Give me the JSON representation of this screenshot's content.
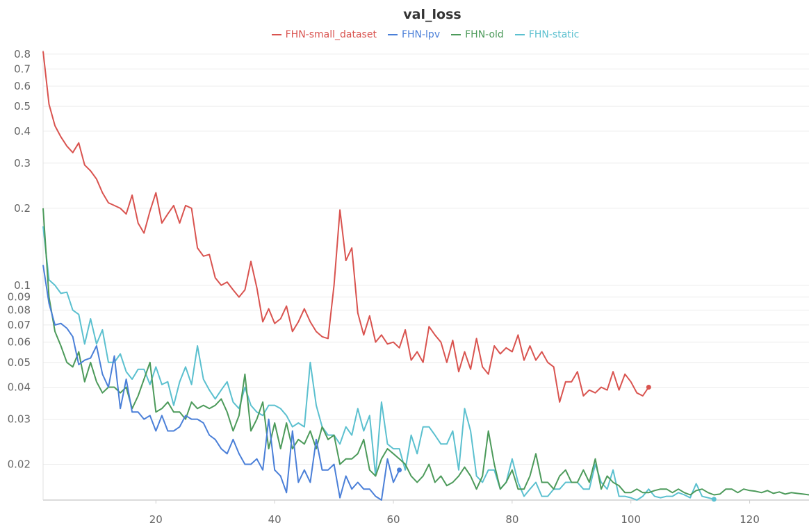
{
  "chart_data": {
    "type": "line",
    "title": "val_loss",
    "xlabel": "",
    "ylabel": "",
    "yscale": "log",
    "xlim": [
      1,
      130
    ],
    "ylim": [
      0.0145,
      0.83
    ],
    "grid": true,
    "legend_position": "top-center",
    "x_ticks": [
      20,
      40,
      60,
      80,
      100,
      120
    ],
    "y_ticks": [
      0.02,
      0.03,
      0.04,
      0.05,
      0.06,
      0.07,
      0.08,
      0.09,
      0.1,
      0.2,
      0.3,
      0.4,
      0.5,
      0.6,
      0.7,
      0.8
    ],
    "y_tick_labels": [
      "0.02",
      "0.03",
      "0.04",
      "0.05",
      "0.06",
      "0.07",
      "0.08",
      "0.09",
      "0.1",
      "0.2",
      "0.3",
      "0.4",
      "0.5",
      "0.6",
      "0.7",
      "0.8"
    ],
    "series": [
      {
        "name": "FHN-small_dataset",
        "color": "#d9534f",
        "x": [
          1,
          2,
          3,
          4,
          5,
          6,
          7,
          8,
          9,
          10,
          11,
          12,
          13,
          14,
          15,
          16,
          17,
          18,
          19,
          20,
          21,
          22,
          23,
          24,
          25,
          26,
          27,
          28,
          29,
          30,
          31,
          32,
          33,
          34,
          35,
          36,
          37,
          38,
          39,
          40,
          41,
          42,
          43,
          44,
          45,
          46,
          47,
          48,
          49,
          50,
          51,
          52,
          53,
          54,
          55,
          56,
          57,
          58,
          59,
          60,
          61,
          62,
          63,
          64,
          65,
          66,
          67,
          68,
          69,
          70,
          71,
          72,
          73,
          74,
          75,
          76,
          77,
          78,
          79,
          80,
          81,
          82,
          83,
          84,
          85,
          86,
          87,
          88,
          89,
          90,
          91,
          92,
          93,
          94,
          95,
          96,
          97,
          98,
          99,
          100,
          101,
          102,
          103
        ],
        "y": [
          0.82,
          0.51,
          0.42,
          0.38,
          0.35,
          0.33,
          0.36,
          0.295,
          0.28,
          0.26,
          0.23,
          0.21,
          0.205,
          0.2,
          0.19,
          0.225,
          0.175,
          0.16,
          0.195,
          0.23,
          0.175,
          0.19,
          0.205,
          0.175,
          0.205,
          0.2,
          0.14,
          0.13,
          0.132,
          0.107,
          0.1,
          0.103,
          0.096,
          0.09,
          0.096,
          0.124,
          0.098,
          0.072,
          0.081,
          0.071,
          0.074,
          0.083,
          0.066,
          0.072,
          0.081,
          0.072,
          0.066,
          0.063,
          0.062,
          0.1,
          0.197,
          0.125,
          0.14,
          0.078,
          0.064,
          0.076,
          0.06,
          0.064,
          0.059,
          0.06,
          0.057,
          0.067,
          0.051,
          0.055,
          0.05,
          0.069,
          0.064,
          0.06,
          0.05,
          0.061,
          0.046,
          0.055,
          0.047,
          0.062,
          0.048,
          0.045,
          0.058,
          0.054,
          0.057,
          0.055,
          0.064,
          0.051,
          0.058,
          0.051,
          0.055,
          0.05,
          0.048,
          0.035,
          0.042,
          0.042,
          0.046,
          0.037,
          0.039,
          0.038,
          0.04,
          0.039,
          0.046,
          0.039,
          0.045,
          0.042,
          0.038,
          0.037,
          0.04
        ]
      },
      {
        "name": "FHN-lpv",
        "color": "#4a7fd8",
        "x": [
          1,
          2,
          3,
          4,
          5,
          6,
          7,
          8,
          9,
          10,
          11,
          12,
          13,
          14,
          15,
          16,
          17,
          18,
          19,
          20,
          21,
          22,
          23,
          24,
          25,
          26,
          27,
          28,
          29,
          30,
          31,
          32,
          33,
          34,
          35,
          36,
          37,
          38,
          39,
          40,
          41,
          42,
          43,
          44,
          45,
          46,
          47,
          48,
          49,
          50,
          51,
          52,
          53,
          54,
          55,
          56,
          57,
          58,
          59,
          60,
          61
        ],
        "y": [
          0.12,
          0.085,
          0.07,
          0.071,
          0.068,
          0.063,
          0.049,
          0.051,
          0.052,
          0.058,
          0.045,
          0.04,
          0.053,
          0.033,
          0.043,
          0.032,
          0.032,
          0.03,
          0.031,
          0.027,
          0.031,
          0.027,
          0.027,
          0.028,
          0.031,
          0.03,
          0.03,
          0.029,
          0.026,
          0.025,
          0.023,
          0.022,
          0.025,
          0.022,
          0.02,
          0.02,
          0.021,
          0.019,
          0.03,
          0.019,
          0.018,
          0.0155,
          0.027,
          0.017,
          0.019,
          0.017,
          0.025,
          0.019,
          0.019,
          0.02,
          0.0148,
          0.018,
          0.016,
          0.017,
          0.016,
          0.016,
          0.015,
          0.0145,
          0.021,
          0.017,
          0.019
        ]
      },
      {
        "name": "FHN-old",
        "color": "#4c9a5a",
        "x": [
          1,
          2,
          3,
          4,
          5,
          6,
          7,
          8,
          9,
          10,
          11,
          12,
          13,
          14,
          15,
          16,
          17,
          18,
          19,
          20,
          21,
          22,
          23,
          24,
          25,
          26,
          27,
          28,
          29,
          30,
          31,
          32,
          33,
          34,
          35,
          36,
          37,
          38,
          39,
          40,
          41,
          42,
          43,
          44,
          45,
          46,
          47,
          48,
          49,
          50,
          51,
          52,
          53,
          54,
          55,
          56,
          57,
          58,
          59,
          60,
          61,
          62,
          63,
          64,
          65,
          66,
          67,
          68,
          69,
          70,
          71,
          72,
          73,
          74,
          75,
          76,
          77,
          78,
          79,
          80,
          81,
          82,
          83,
          84,
          85,
          86,
          87,
          88,
          89,
          90,
          91,
          92,
          93,
          94,
          95,
          96,
          97,
          98,
          99,
          100,
          101,
          102,
          103,
          104,
          105,
          106,
          107,
          108,
          109,
          110,
          111,
          112,
          113,
          114,
          115,
          116,
          117,
          118,
          119,
          120,
          121,
          122,
          123,
          124,
          125,
          126,
          127,
          128,
          129,
          130
        ],
        "y": [
          0.2,
          0.09,
          0.066,
          0.058,
          0.05,
          0.048,
          0.055,
          0.042,
          0.05,
          0.042,
          0.038,
          0.04,
          0.04,
          0.038,
          0.04,
          0.033,
          0.037,
          0.043,
          0.05,
          0.032,
          0.033,
          0.035,
          0.032,
          0.032,
          0.03,
          0.035,
          0.033,
          0.034,
          0.033,
          0.034,
          0.036,
          0.032,
          0.027,
          0.031,
          0.045,
          0.027,
          0.03,
          0.035,
          0.023,
          0.029,
          0.023,
          0.029,
          0.023,
          0.025,
          0.024,
          0.027,
          0.023,
          0.028,
          0.025,
          0.026,
          0.02,
          0.021,
          0.021,
          0.022,
          0.025,
          0.019,
          0.018,
          0.021,
          0.023,
          0.022,
          0.021,
          0.02,
          0.018,
          0.017,
          0.018,
          0.02,
          0.017,
          0.018,
          0.0165,
          0.017,
          0.018,
          0.0195,
          0.018,
          0.016,
          0.018,
          0.027,
          0.02,
          0.016,
          0.017,
          0.019,
          0.016,
          0.016,
          0.018,
          0.022,
          0.017,
          0.017,
          0.016,
          0.018,
          0.019,
          0.017,
          0.017,
          0.019,
          0.017,
          0.021,
          0.016,
          0.018,
          0.017,
          0.0165,
          0.0155,
          0.0155,
          0.016,
          0.0155,
          0.0155,
          0.0158,
          0.016,
          0.016,
          0.0155,
          0.016,
          0.0155,
          0.0152,
          0.0158,
          0.016,
          0.0155,
          0.0152,
          0.0153,
          0.016,
          0.016,
          0.0155,
          0.016,
          0.0158,
          0.0157,
          0.0155,
          0.0158,
          0.0154,
          0.0156,
          0.0153,
          0.0155,
          0.0154,
          0.0153,
          0.0152
        ]
      },
      {
        "name": "FHN-static",
        "color": "#5bc0cf",
        "x": [
          1,
          2,
          3,
          4,
          5,
          6,
          7,
          8,
          9,
          10,
          11,
          12,
          13,
          14,
          15,
          16,
          17,
          18,
          19,
          20,
          21,
          22,
          23,
          24,
          25,
          26,
          27,
          28,
          29,
          30,
          31,
          32,
          33,
          34,
          35,
          36,
          37,
          38,
          39,
          40,
          41,
          42,
          43,
          44,
          45,
          46,
          47,
          48,
          49,
          50,
          51,
          52,
          53,
          54,
          55,
          56,
          57,
          58,
          59,
          60,
          61,
          62,
          63,
          64,
          65,
          66,
          67,
          68,
          69,
          70,
          71,
          72,
          73,
          74,
          75,
          76,
          77,
          78,
          79,
          80,
          81,
          82,
          83,
          84,
          85,
          86,
          87,
          88,
          89,
          90,
          91,
          92,
          93,
          94,
          95,
          96,
          97,
          98,
          99,
          100,
          101,
          102,
          103,
          104,
          105,
          106,
          107,
          108,
          109,
          110,
          111,
          112,
          113,
          114
        ],
        "y": [
          0.17,
          0.105,
          0.1,
          0.093,
          0.094,
          0.08,
          0.077,
          0.059,
          0.074,
          0.059,
          0.067,
          0.05,
          0.05,
          0.054,
          0.046,
          0.043,
          0.047,
          0.047,
          0.041,
          0.048,
          0.041,
          0.042,
          0.034,
          0.042,
          0.048,
          0.041,
          0.058,
          0.043,
          0.039,
          0.036,
          0.039,
          0.042,
          0.035,
          0.033,
          0.04,
          0.034,
          0.032,
          0.031,
          0.034,
          0.034,
          0.033,
          0.031,
          0.028,
          0.029,
          0.028,
          0.05,
          0.034,
          0.028,
          0.026,
          0.026,
          0.024,
          0.028,
          0.026,
          0.033,
          0.027,
          0.031,
          0.018,
          0.035,
          0.024,
          0.023,
          0.023,
          0.019,
          0.026,
          0.022,
          0.028,
          0.028,
          0.026,
          0.024,
          0.024,
          0.027,
          0.019,
          0.033,
          0.027,
          0.018,
          0.017,
          0.019,
          0.019,
          0.016,
          0.017,
          0.021,
          0.017,
          0.015,
          0.016,
          0.017,
          0.015,
          0.015,
          0.016,
          0.016,
          0.017,
          0.017,
          0.017,
          0.016,
          0.016,
          0.02,
          0.017,
          0.016,
          0.019,
          0.015,
          0.015,
          0.0148,
          0.0145,
          0.015,
          0.016,
          0.015,
          0.0148,
          0.015,
          0.015,
          0.0155,
          0.0152,
          0.0148,
          0.0168,
          0.015,
          0.0148,
          0.0146
        ]
      }
    ]
  }
}
